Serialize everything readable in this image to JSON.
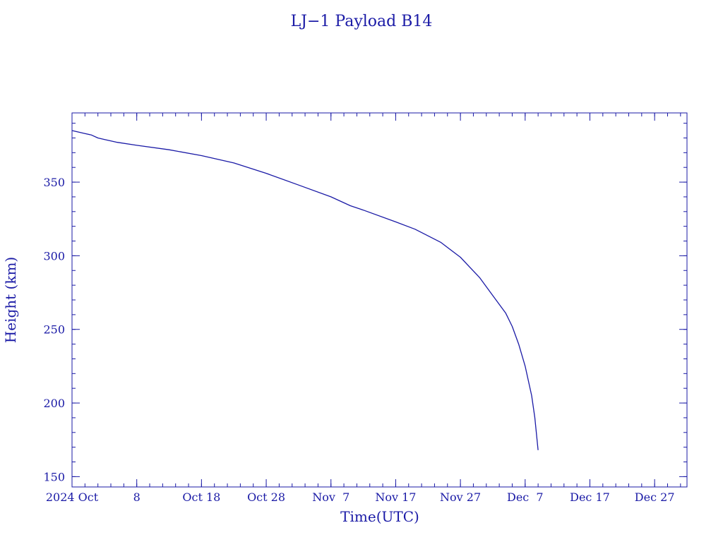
{
  "chart_data": {
    "type": "line",
    "title": "LJ−1 Payload B14",
    "xlabel": "Time(UTC)",
    "ylabel": "Height (km)",
    "x_tick_labels": [
      "2024 Oct",
      "8",
      "Oct 18",
      "Oct 28",
      "Nov  7",
      "Nov 17",
      "Nov 27",
      "Dec  7",
      "Dec 17",
      "Dec 27"
    ],
    "x_tick_dates": [
      "2024-09-28",
      "2024-10-08",
      "2024-10-18",
      "2024-10-28",
      "2024-11-07",
      "2024-11-17",
      "2024-11-27",
      "2024-12-07",
      "2024-12-17",
      "2024-12-27"
    ],
    "xlim": [
      "2024-09-28",
      "2025-01-01"
    ],
    "y_ticks": [
      150,
      200,
      250,
      300,
      350
    ],
    "ylim": [
      143,
      397
    ],
    "grid": false,
    "series": [
      {
        "x": [
          "2024-09-28",
          "2024-09-30",
          "2024-10-01",
          "2024-10-02",
          "2024-10-03",
          "2024-10-05",
          "2024-10-08",
          "2024-10-13",
          "2024-10-18",
          "2024-10-23",
          "2024-10-28",
          "2024-11-02",
          "2024-11-07",
          "2024-11-10",
          "2024-11-12",
          "2024-11-17",
          "2024-11-20",
          "2024-11-24",
          "2024-11-27",
          "2024-11-30",
          "2024-12-02",
          "2024-12-04",
          "2024-12-05",
          "2024-12-06",
          "2024-12-07",
          "2024-12-08",
          "2024-12-08T12:00",
          "2024-12-09"
        ],
        "values": [
          385,
          383,
          382,
          380,
          379,
          377,
          375,
          372,
          368,
          363,
          356,
          348,
          340,
          334,
          331,
          323,
          318,
          309,
          299,
          285,
          273,
          261,
          252,
          240,
          225,
          205,
          190,
          168
        ]
      }
    ]
  }
}
